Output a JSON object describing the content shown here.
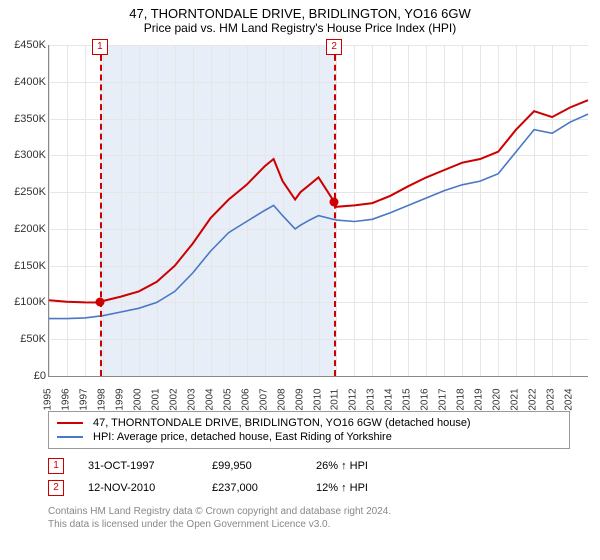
{
  "title": "47, THORNTONDALE DRIVE, BRIDLINGTON, YO16 6GW",
  "subtitle": "Price paid vs. HM Land Registry's House Price Index (HPI)",
  "chart": {
    "type": "line",
    "background_color": "#ffffff",
    "grid_color": "#e6e6e6",
    "axis_color": "#888888",
    "xlim": [
      1995,
      2025
    ],
    "ylim": [
      0,
      450000
    ],
    "ytick_step": 50000,
    "ytick_prefix": "£",
    "ytick_suffix": "K",
    "x_ticks": [
      1995,
      1996,
      1997,
      1998,
      1999,
      2000,
      2001,
      2002,
      2003,
      2004,
      2005,
      2006,
      2007,
      2008,
      2009,
      2010,
      2011,
      2012,
      2013,
      2014,
      2015,
      2016,
      2017,
      2018,
      2019,
      2020,
      2021,
      2022,
      2023,
      2024
    ],
    "shade_start": 1997.83,
    "shade_end": 2010.87,
    "shade_color": "#e8eef8",
    "markers": [
      {
        "label": "1",
        "x": 1997.83,
        "y": 99950
      },
      {
        "label": "2",
        "x": 2010.87,
        "y": 237000
      }
    ],
    "marker_color": "#cc0000",
    "series": [
      {
        "name": "47, THORNTONDALE DRIVE, BRIDLINGTON, YO16 6GW (detached house)",
        "color": "#cc0000",
        "line_width": 2,
        "x": [
          1995,
          1996,
          1997,
          1997.83,
          1998,
          1999,
          2000,
          2001,
          2002,
          2003,
          2004,
          2005,
          2006,
          2007,
          2007.5,
          2008,
          2008.7,
          2009,
          2009.5,
          2010,
          2010.87,
          2011,
          2012,
          2013,
          2014,
          2015,
          2016,
          2017,
          2018,
          2019,
          2020,
          2021,
          2022,
          2023,
          2024,
          2025
        ],
        "y": [
          103000,
          101000,
          100000,
          99950,
          102000,
          108000,
          115000,
          128000,
          150000,
          180000,
          215000,
          240000,
          260000,
          285000,
          295000,
          265000,
          240000,
          250000,
          260000,
          270000,
          237000,
          230000,
          232000,
          235000,
          245000,
          258000,
          270000,
          280000,
          290000,
          295000,
          305000,
          335000,
          360000,
          352000,
          365000,
          375000
        ]
      },
      {
        "name": "HPI: Average price, detached house, East Riding of Yorkshire",
        "color": "#4a78c4",
        "line_width": 1.6,
        "x": [
          1995,
          1996,
          1997,
          1998,
          1999,
          2000,
          2001,
          2002,
          2003,
          2004,
          2005,
          2006,
          2007,
          2007.5,
          2008,
          2008.7,
          2009,
          2009.5,
          2010,
          2011,
          2012,
          2013,
          2014,
          2015,
          2016,
          2017,
          2018,
          2019,
          2020,
          2021,
          2022,
          2023,
          2024,
          2025
        ],
        "y": [
          78000,
          78000,
          79000,
          82000,
          87000,
          92000,
          100000,
          115000,
          140000,
          170000,
          195000,
          210000,
          225000,
          232000,
          218000,
          200000,
          205000,
          212000,
          218000,
          212000,
          210000,
          213000,
          222000,
          232000,
          242000,
          252000,
          260000,
          265000,
          275000,
          305000,
          335000,
          330000,
          345000,
          356000
        ]
      }
    ]
  },
  "legend": {
    "border_color": "#999999"
  },
  "transactions": [
    {
      "badge": "1",
      "date": "31-OCT-1997",
      "price": "£99,950",
      "delta": "26% ↑ HPI"
    },
    {
      "badge": "2",
      "date": "12-NOV-2010",
      "price": "£237,000",
      "delta": "12% ↑ HPI"
    }
  ],
  "footnote_line1": "Contains HM Land Registry data © Crown copyright and database right 2024.",
  "footnote_line2": "This data is licensed under the Open Government Licence v3.0."
}
